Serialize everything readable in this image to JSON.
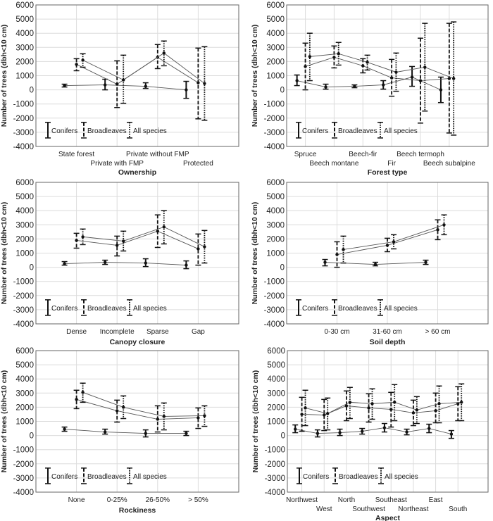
{
  "chart_data": [
    {
      "type": "line",
      "xlabel": "Ownership",
      "ylabel": "Number of trees (dbh<10 cm)",
      "ylim": [
        -4000,
        6000
      ],
      "yticks": [
        6000,
        5000,
        4000,
        3000,
        2000,
        1000,
        0,
        -1000,
        -2000,
        -3000,
        -4000
      ],
      "grid": true,
      "legend": {
        "placement": "bottom-left",
        "entries": [
          "Conifers",
          "Broadleaves",
          "All species"
        ]
      },
      "categories": [
        "State forest",
        "Private with FMP",
        "Private without FMP",
        "Protected"
      ],
      "series": [
        {
          "name": "Conifers",
          "style": "solid",
          "mean": [
            300,
            350,
            250,
            0
          ],
          "lower": [
            200,
            0,
            100,
            -600
          ],
          "upper": [
            400,
            750,
            500,
            600
          ]
        },
        {
          "name": "Broadleaves",
          "style": "dashed",
          "mean": [
            1800,
            400,
            2300,
            500
          ],
          "lower": [
            1350,
            -1250,
            1500,
            -2050
          ],
          "upper": [
            2200,
            2050,
            3200,
            2950
          ]
        },
        {
          "name": "All species",
          "style": "dotted",
          "mean": [
            2100,
            700,
            2600,
            450
          ],
          "lower": [
            1600,
            -950,
            1700,
            -2150
          ],
          "upper": [
            2550,
            2450,
            3450,
            3050
          ]
        }
      ]
    },
    {
      "type": "line",
      "xlabel": "Forest type",
      "ylabel": "Number of trees (dbh<10 cm)",
      "ylim": [
        -4000,
        6000
      ],
      "yticks": [
        6000,
        5000,
        4000,
        3000,
        2000,
        1000,
        0,
        -1000,
        -2000,
        -3000,
        -4000
      ],
      "grid": true,
      "legend": {
        "placement": "bottom-left",
        "entries": [
          "Conifers",
          "Broadleaves",
          "All species"
        ]
      },
      "categories": [
        "Spruce",
        "Beech montane",
        "Beech-fir",
        "Fir",
        "Beech termoph",
        "Beech subalpine"
      ],
      "series": [
        {
          "name": "Conifers",
          "style": "solid",
          "mean": [
            650,
            200,
            250,
            350,
            900,
            0
          ],
          "lower": [
            300,
            50,
            150,
            50,
            250,
            -900
          ],
          "upper": [
            1050,
            400,
            350,
            650,
            1650,
            900
          ]
        },
        {
          "name": "Broadleaves",
          "style": "dashed",
          "mean": [
            1650,
            2300,
            1700,
            850,
            650,
            800
          ],
          "lower": [
            0,
            1550,
            1200,
            -450,
            -2350,
            -3050
          ],
          "upper": [
            3300,
            3100,
            2200,
            2150,
            3650,
            4700
          ]
        },
        {
          "name": "All species",
          "style": "dotted",
          "mean": [
            2350,
            2550,
            1950,
            1250,
            1600,
            800
          ],
          "lower": [
            650,
            1750,
            1400,
            -100,
            -1500,
            -3200
          ],
          "upper": [
            4000,
            3350,
            2450,
            2600,
            4700,
            4800
          ]
        }
      ]
    },
    {
      "type": "line",
      "xlabel": "Canopy closure",
      "ylabel": "Number of trees (dbh<10 cm)",
      "ylim": [
        -4000,
        6000
      ],
      "yticks": [
        6000,
        5000,
        4000,
        3000,
        2000,
        1000,
        0,
        -1000,
        -2000,
        -3000,
        -4000
      ],
      "grid": true,
      "legend": {
        "placement": "bottom-left",
        "entries": [
          "Conifers",
          "Broadleaves",
          "All species"
        ]
      },
      "categories": [
        "Dense",
        "Incomplete",
        "Sparse",
        "Gap"
      ],
      "series": [
        {
          "name": "Conifers",
          "style": "solid",
          "mean": [
            250,
            350,
            300,
            150
          ],
          "lower": [
            150,
            200,
            50,
            -100
          ],
          "upper": [
            400,
            500,
            600,
            450
          ]
        },
        {
          "name": "Broadleaves",
          "style": "dashed",
          "mean": [
            1900,
            1550,
            2550,
            1300
          ],
          "lower": [
            1350,
            800,
            1400,
            150
          ],
          "upper": [
            2400,
            2200,
            3700,
            2350
          ]
        },
        {
          "name": "All species",
          "style": "dotted",
          "mean": [
            2150,
            1850,
            2850,
            1450
          ],
          "lower": [
            1600,
            1150,
            1650,
            300
          ],
          "upper": [
            2700,
            2550,
            4000,
            2600
          ]
        }
      ]
    },
    {
      "type": "line",
      "xlabel": "Soil depth",
      "ylabel": "Number of trees (dbh<10 cm)",
      "ylim": [
        -4000,
        6000
      ],
      "yticks": [
        6000,
        5000,
        4000,
        3000,
        2000,
        1000,
        0,
        -1000,
        -2000,
        -3000,
        -4000
      ],
      "grid": true,
      "legend": {
        "placement": "bottom-left",
        "entries": [
          "Conifers",
          "Broadleaves",
          "All species"
        ]
      },
      "categories": [
        "0-30 cm",
        "31-60 cm",
        "> 60 cm"
      ],
      "series": [
        {
          "name": "Conifers",
          "style": "solid",
          "mean": [
            350,
            200,
            350
          ],
          "lower": [
            100,
            100,
            200
          ],
          "upper": [
            550,
            350,
            500
          ]
        },
        {
          "name": "Broadleaves",
          "style": "dashed",
          "mean": [
            900,
            1550,
            2650
          ],
          "lower": [
            0,
            1100,
            1950
          ],
          "upper": [
            1800,
            2050,
            3350
          ]
        },
        {
          "name": "All species",
          "style": "dotted",
          "mean": [
            1250,
            1800,
            3000
          ],
          "lower": [
            300,
            1300,
            2300
          ],
          "upper": [
            2200,
            2300,
            3700
          ]
        }
      ]
    },
    {
      "type": "line",
      "xlabel": "Rockiness",
      "ylabel": "Number of trees (dbh<10 cm)",
      "ylim": [
        -4000,
        6000
      ],
      "yticks": [
        6000,
        5000,
        4000,
        3000,
        2000,
        1000,
        0,
        -1000,
        -2000,
        -3000,
        -4000
      ],
      "grid": true,
      "legend": {
        "placement": "bottom-left",
        "entries": [
          "Conifers",
          "Broadleaves",
          "All species"
        ]
      },
      "categories": [
        "None",
        "0-25%",
        "26-50%",
        "> 50%"
      ],
      "series": [
        {
          "name": "Conifers",
          "style": "solid",
          "mean": [
            450,
            250,
            150,
            150
          ],
          "lower": [
            300,
            100,
            -100,
            0
          ],
          "upper": [
            600,
            450,
            400,
            300
          ]
        },
        {
          "name": "Broadleaves",
          "style": "dashed",
          "mean": [
            2550,
            1750,
            1150,
            1250
          ],
          "lower": [
            1900,
            950,
            250,
            500
          ],
          "upper": [
            3200,
            2500,
            2100,
            1950
          ]
        },
        {
          "name": "All species",
          "style": "dotted",
          "mean": [
            3050,
            2000,
            1350,
            1400
          ],
          "lower": [
            2350,
            1200,
            400,
            650
          ],
          "upper": [
            3700,
            2800,
            2300,
            2100
          ]
        }
      ]
    },
    {
      "type": "line",
      "xlabel": "Aspect",
      "ylabel": "Number of trees (dbh<10 cm)",
      "ylim": [
        -4000,
        6000
      ],
      "yticks": [
        6000,
        5000,
        4000,
        3000,
        2000,
        1000,
        0,
        -1000,
        -2000,
        -3000,
        -4000
      ],
      "grid": true,
      "legend": {
        "placement": "bottom-left",
        "entries": [
          "Conifers",
          "Broadleaves",
          "All species"
        ]
      },
      "categories": [
        "Northwest",
        "West",
        "North",
        "Southwest",
        "Southeast",
        "Northeast",
        "East",
        "South"
      ],
      "series": [
        {
          "name": "Conifers",
          "style": "solid",
          "mean": [
            450,
            150,
            200,
            300,
            550,
            250,
            500,
            100
          ],
          "lower": [
            200,
            -100,
            0,
            100,
            250,
            50,
            200,
            -200
          ],
          "upper": [
            750,
            400,
            450,
            500,
            850,
            450,
            800,
            350
          ]
        },
        {
          "name": "Broadleaves",
          "style": "dashed",
          "mean": [
            1500,
            1450,
            2100,
            1950,
            1850,
            1600,
            1750,
            2250
          ],
          "lower": [
            300,
            350,
            1050,
            950,
            600,
            700,
            900,
            1050
          ],
          "upper": [
            2700,
            2550,
            3150,
            2950,
            3050,
            2500,
            3000,
            3450
          ]
        },
        {
          "name": "All species",
          "style": "dotted",
          "mean": [
            1950,
            1550,
            2350,
            2250,
            2350,
            1800,
            2250,
            2350
          ],
          "lower": [
            700,
            400,
            1200,
            1150,
            1050,
            850,
            900,
            1050
          ],
          "upper": [
            3200,
            2650,
            3400,
            3300,
            3600,
            2750,
            3500,
            3650
          ]
        }
      ]
    }
  ]
}
